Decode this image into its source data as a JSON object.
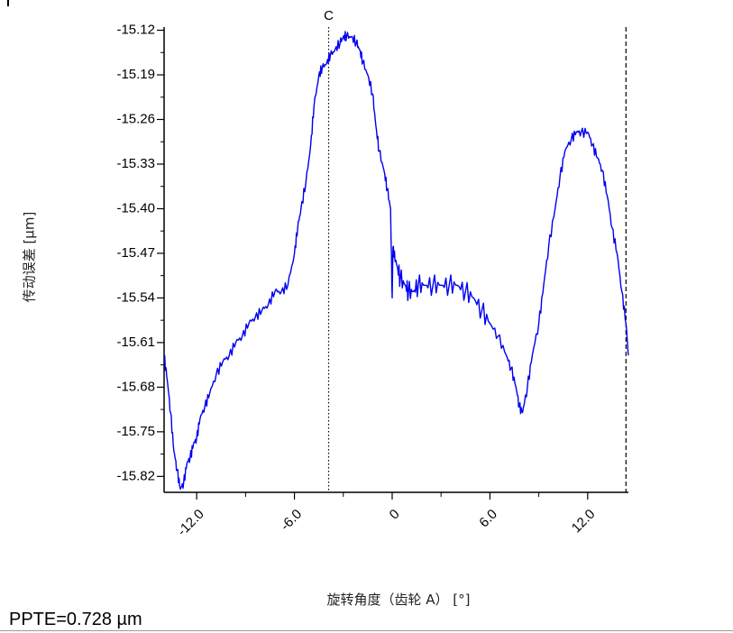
{
  "chart_data": {
    "type": "line",
    "title": "",
    "xlabel": "旋转角度（齿轮 A） [°]",
    "ylabel": "传动误差 [µm]",
    "xlim": [
      -14.0,
      14.5
    ],
    "ylim": [
      -15.845,
      -15.115
    ],
    "x_ticks": [
      -12.0,
      -6.0,
      0,
      6.0,
      12.0
    ],
    "x_tick_labels": [
      "-12.0",
      "-6.0",
      "0",
      "6.0",
      "12.0"
    ],
    "y_ticks": [
      -15.12,
      -15.19,
      -15.26,
      -15.33,
      -15.4,
      -15.47,
      -15.54,
      -15.61,
      -15.68,
      -15.75,
      -15.82
    ],
    "y_tick_labels": [
      "-15.12",
      "-15.19",
      "-15.26",
      "-15.33",
      "-15.40",
      "-15.47",
      "-15.54",
      "-15.61",
      "-15.68",
      "-15.75",
      "-15.82"
    ],
    "series": [
      {
        "color": "#0000ee",
        "x": [
          -14.0,
          -13.8,
          -13.6,
          -13.4,
          -13.2,
          -13.0,
          -12.8,
          -12.6,
          -12.4,
          -12.2,
          -12.0,
          -11.8,
          -11.5,
          -11.2,
          -10.8,
          -10.4,
          -10.0,
          -9.6,
          -9.2,
          -8.8,
          -8.4,
          -8.0,
          -7.6,
          -7.2,
          -6.8,
          -6.4,
          -6.0,
          -5.8,
          -5.6,
          -5.3,
          -5.0,
          -4.8,
          -4.5,
          -4.3,
          -4.0,
          -3.8,
          -3.5,
          -3.2,
          -3.0,
          -2.8,
          -2.5,
          -2.2,
          -2.0,
          -1.8,
          -1.5,
          -1.2,
          -1.0,
          -0.8,
          -0.5,
          -0.3,
          -0.1,
          0.0,
          0.05,
          0.1,
          0.3,
          0.5,
          0.8,
          1.0,
          1.3,
          1.6,
          2.0,
          2.5,
          3.0,
          3.5,
          4.0,
          4.5,
          5.0,
          5.5,
          6.0,
          6.5,
          7.0,
          7.3,
          7.6,
          7.8,
          8.0,
          8.3,
          8.6,
          9.0,
          9.3,
          9.6,
          10.0,
          10.3,
          10.6,
          11.0,
          11.3,
          11.6,
          12.0,
          12.3,
          12.6,
          12.9,
          13.2,
          13.5,
          13.8,
          14.1,
          14.35,
          14.5
        ],
        "y": [
          -15.63,
          -15.67,
          -15.72,
          -15.78,
          -15.81,
          -15.84,
          -15.83,
          -15.8,
          -15.79,
          -15.77,
          -15.76,
          -15.73,
          -15.71,
          -15.69,
          -15.66,
          -15.64,
          -15.63,
          -15.61,
          -15.6,
          -15.58,
          -15.57,
          -15.56,
          -15.55,
          -15.53,
          -15.53,
          -15.52,
          -15.47,
          -15.43,
          -15.4,
          -15.36,
          -15.3,
          -15.24,
          -15.19,
          -15.18,
          -15.17,
          -15.16,
          -15.15,
          -15.14,
          -15.13,
          -15.13,
          -15.13,
          -15.14,
          -15.15,
          -15.17,
          -15.19,
          -15.22,
          -15.27,
          -15.31,
          -15.34,
          -15.37,
          -15.4,
          -15.54,
          -15.46,
          -15.47,
          -15.49,
          -15.51,
          -15.52,
          -15.53,
          -15.53,
          -15.52,
          -15.52,
          -15.52,
          -15.52,
          -15.52,
          -15.52,
          -15.53,
          -15.54,
          -15.56,
          -15.58,
          -15.6,
          -15.63,
          -15.65,
          -15.68,
          -15.71,
          -15.72,
          -15.68,
          -15.63,
          -15.58,
          -15.52,
          -15.46,
          -15.4,
          -15.35,
          -15.31,
          -15.29,
          -15.28,
          -15.28,
          -15.28,
          -15.3,
          -15.32,
          -15.34,
          -15.38,
          -15.43,
          -15.47,
          -15.53,
          -15.58,
          -15.63
        ]
      }
    ],
    "markers": [
      {
        "label": "C",
        "x": -3.9,
        "style": "dotted"
      },
      {
        "label": "",
        "x": 14.35,
        "style": "dashed"
      }
    ]
  },
  "footer": {
    "ppte": "PPTE=0.728 µm"
  }
}
